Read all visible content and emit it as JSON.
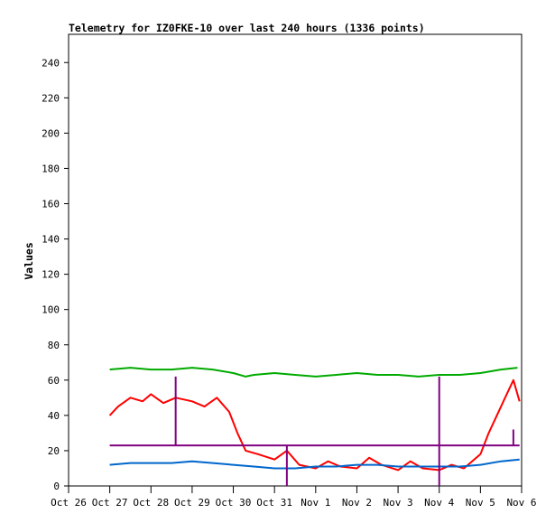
{
  "chart_data": {
    "type": "line",
    "title": "Telemetry for IZ0FKE-10 over last 240 hours (1336 points)",
    "xlabel": "",
    "ylabel": "Values",
    "x_ticks": [
      "Oct 26",
      "Oct 27",
      "Oct 28",
      "Oct 29",
      "Oct 30",
      "Oct 31",
      "Nov 1",
      "Nov 2",
      "Nov 3",
      "Nov 4",
      "Nov 5",
      "Nov 6"
    ],
    "y_ticks": [
      0,
      20,
      40,
      60,
      80,
      100,
      120,
      140,
      160,
      180,
      200,
      220,
      240
    ],
    "xlim_days": [
      0,
      11
    ],
    "ylim": [
      0,
      256
    ],
    "grid": false,
    "legend": "none",
    "series": [
      {
        "color": "#00aa00",
        "x": [
          1.0,
          1.5,
          2.0,
          2.5,
          3.0,
          3.5,
          4.0,
          4.3,
          4.5,
          5.0,
          5.5,
          6.0,
          6.5,
          7.0,
          7.5,
          8.0,
          8.5,
          9.0,
          9.5,
          10.0,
          10.5,
          10.9
        ],
        "values": [
          66,
          67,
          66,
          66,
          67,
          66,
          64,
          62,
          63,
          64,
          63,
          62,
          63,
          64,
          63,
          63,
          62,
          63,
          63,
          64,
          66,
          67
        ]
      },
      {
        "color": "#ff0000",
        "x": [
          1.0,
          1.2,
          1.5,
          1.8,
          2.0,
          2.3,
          2.6,
          3.0,
          3.3,
          3.6,
          3.9,
          4.1,
          4.3,
          4.6,
          5.0,
          5.3,
          5.6,
          6.0,
          6.3,
          6.6,
          7.0,
          7.3,
          7.6,
          8.0,
          8.3,
          8.6,
          9.0,
          9.3,
          9.6,
          10.0,
          10.2,
          10.4,
          10.6,
          10.8,
          10.95
        ],
        "values": [
          40,
          45,
          50,
          48,
          52,
          47,
          50,
          48,
          45,
          50,
          42,
          30,
          20,
          18,
          15,
          20,
          12,
          10,
          14,
          11,
          10,
          16,
          12,
          9,
          14,
          10,
          9,
          12,
          10,
          18,
          30,
          40,
          50,
          60,
          48
        ]
      },
      {
        "color": "#800080",
        "x": [
          1.0,
          2.0,
          3.0,
          4.0,
          5.0,
          6.0,
          7.0,
          8.0,
          9.0,
          10.0,
          10.95
        ],
        "values": [
          23,
          23,
          23,
          23,
          23,
          23,
          23,
          23,
          23,
          23,
          23
        ]
      },
      {
        "color": "#0066cc",
        "x": [
          1.0,
          1.5,
          2.0,
          2.5,
          3.0,
          3.5,
          4.0,
          4.5,
          5.0,
          5.5,
          6.0,
          6.5,
          7.0,
          7.5,
          8.0,
          8.5,
          9.0,
          9.5,
          10.0,
          10.5,
          10.95
        ],
        "values": [
          12,
          13,
          13,
          13,
          14,
          13,
          12,
          11,
          10,
          10,
          11,
          11,
          12,
          12,
          11,
          11,
          11,
          11,
          12,
          14,
          15
        ]
      }
    ],
    "spikes": [
      {
        "color": "#800080",
        "x": 2.6,
        "values": [
          62,
          23
        ]
      },
      {
        "color": "#800080",
        "x": 5.3,
        "values": [
          23,
          0
        ]
      },
      {
        "color": "#800080",
        "x": 9.0,
        "values": [
          62,
          0
        ]
      },
      {
        "color": "#800080",
        "x": 10.8,
        "values": [
          32,
          23
        ]
      }
    ]
  }
}
